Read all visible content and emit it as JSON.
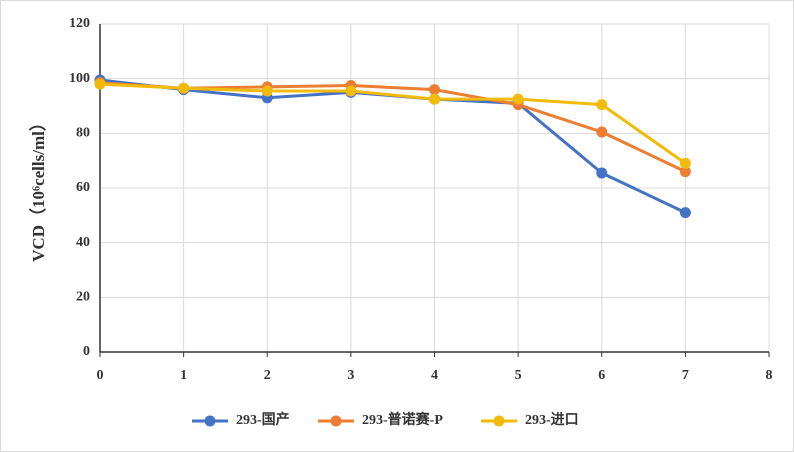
{
  "chart_data": {
    "type": "line",
    "y_label": "VCD（10⁶cells/ml）",
    "x": [
      0,
      1,
      2,
      3,
      4,
      5,
      6,
      7
    ],
    "series": [
      {
        "name": "293-国产",
        "color": "#4472c4",
        "values": [
          99.5,
          96,
          93,
          95,
          92.5,
          91,
          65.5,
          51
        ]
      },
      {
        "name": "293-普诺赛-P",
        "color": "#ed7d31",
        "values": [
          98.5,
          96.5,
          97,
          97.5,
          96,
          90.5,
          80.5,
          66
        ]
      },
      {
        "name": "293-进口",
        "color": "#f2bb0a",
        "values": [
          98,
          96.5,
          95.5,
          95.5,
          92.5,
          92.5,
          90.5,
          69
        ]
      }
    ],
    "xlim": [
      0,
      8
    ],
    "xticks": [
      0,
      1,
      2,
      3,
      4,
      5,
      6,
      7,
      8
    ],
    "ylim": [
      0,
      120
    ],
    "yticks": [
      0,
      20,
      40,
      60,
      80,
      100,
      120
    ],
    "grid": true,
    "legend": "bottom"
  }
}
